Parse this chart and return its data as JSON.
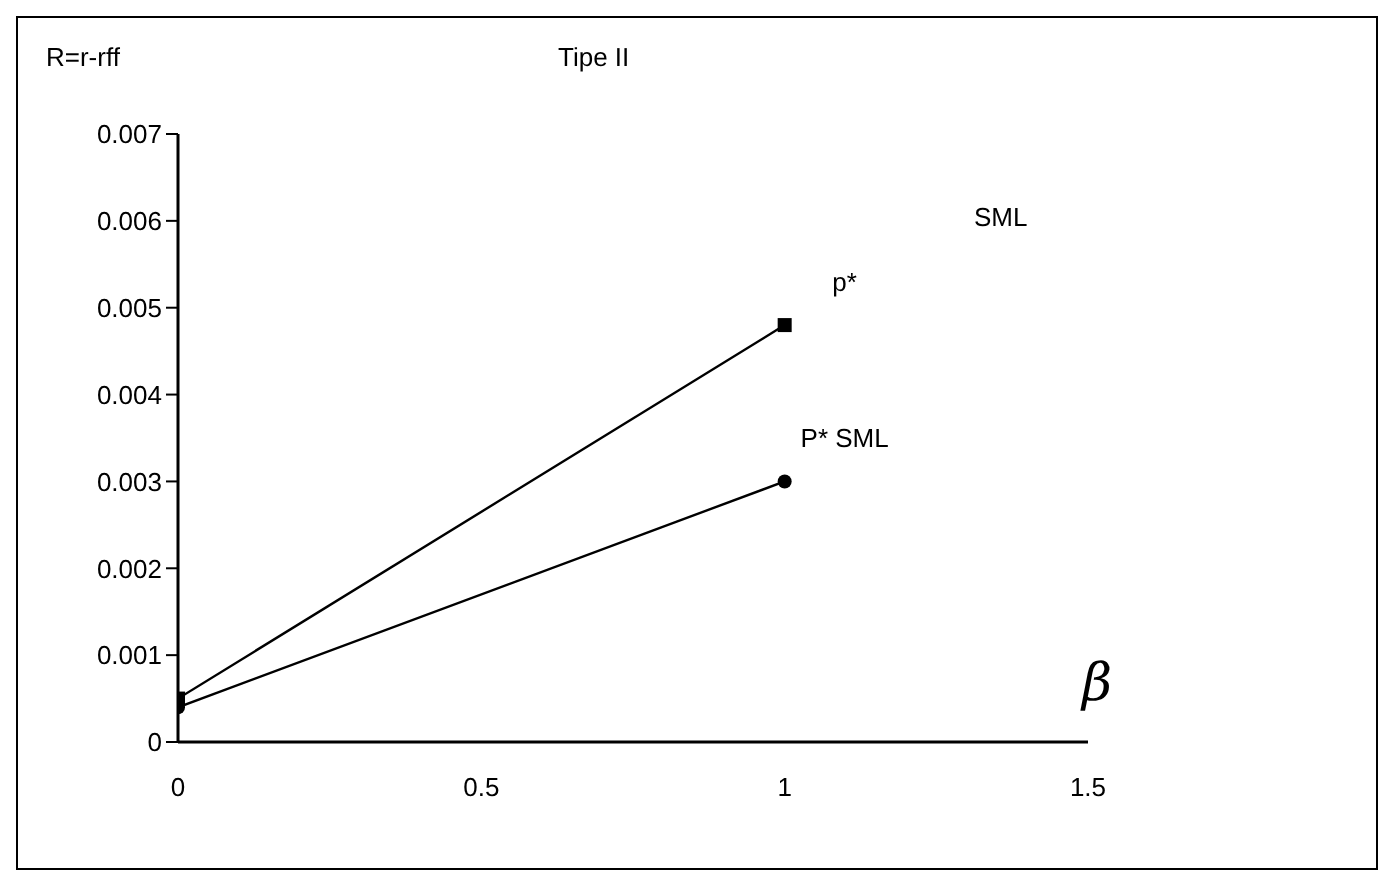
{
  "chart_data": {
    "type": "line",
    "title": "Tipe II",
    "ylabel": "R=r-rff",
    "xlabel": "β",
    "x": [
      0,
      1
    ],
    "series": [
      {
        "color": "#000000",
        "marker": "square",
        "values": [
          0.0005,
          0.0048
        ]
      },
      {
        "color": "#000000",
        "marker": "circle",
        "values": [
          0.0004,
          0.003
        ]
      }
    ],
    "xlim": [
      0,
      1.5
    ],
    "xticks": [
      0,
      0.5,
      1,
      1.5
    ],
    "ylim": [
      0,
      0.007
    ],
    "yticks": [
      0,
      0.001,
      0.002,
      0.003,
      0.004,
      0.005,
      0.006,
      0.007
    ],
    "grid": false,
    "legend": false,
    "line_style": "solid",
    "annotations": [
      "SML",
      {
        "text": "p*",
        "x": 1,
        "y": 0.0048
      },
      {
        "text": "P* SML",
        "x": 1,
        "y": 0.003
      }
    ]
  }
}
